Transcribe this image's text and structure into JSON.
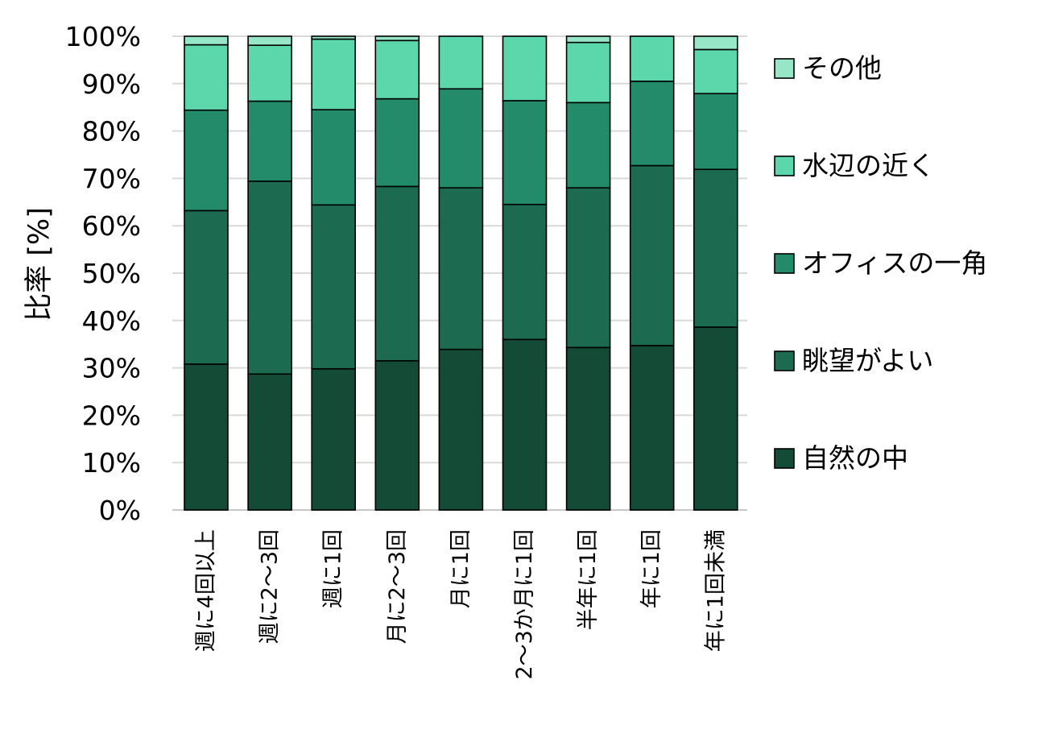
{
  "chart_data": {
    "type": "bar",
    "stacked": true,
    "title": "",
    "xlabel": "",
    "ylabel": "比率 [%]",
    "ylim": [
      0,
      100
    ],
    "y_ticks": [
      "0%",
      "10%",
      "20%",
      "30%",
      "40%",
      "50%",
      "60%",
      "70%",
      "80%",
      "90%",
      "100%"
    ],
    "grid": true,
    "legend_position": "right",
    "categories": [
      "週に4回以上",
      "週に2～3回",
      "週に1回",
      "月に2～3回",
      "月に1回",
      "2～3か月に1回",
      "半年に1回",
      "年に1回",
      "年に1回未満"
    ],
    "series": [
      {
        "name": "自然の中",
        "color": "#134b37",
        "values": [
          30.8,
          28.7,
          29.8,
          31.5,
          33.9,
          36.0,
          34.3,
          34.7,
          38.6
        ]
      },
      {
        "name": "眺望がよい",
        "color": "#1c6a4f",
        "values": [
          32.4,
          40.7,
          34.6,
          36.8,
          34.1,
          28.5,
          33.7,
          38.0,
          33.3
        ]
      },
      {
        "name": "オフィスの一角",
        "color": "#238b6a",
        "values": [
          21.2,
          16.9,
          20.1,
          18.5,
          20.9,
          21.9,
          18.0,
          17.8,
          16.0
        ]
      },
      {
        "name": "水辺の近く",
        "color": "#5cd6ab",
        "values": [
          13.8,
          11.8,
          14.9,
          12.3,
          11.1,
          13.6,
          12.7,
          9.5,
          9.3
        ]
      },
      {
        "name": "その他",
        "color": "#96e6c7",
        "values": [
          1.8,
          1.9,
          0.6,
          0.9,
          0.0,
          0.0,
          1.3,
          0.0,
          2.8
        ]
      }
    ]
  }
}
